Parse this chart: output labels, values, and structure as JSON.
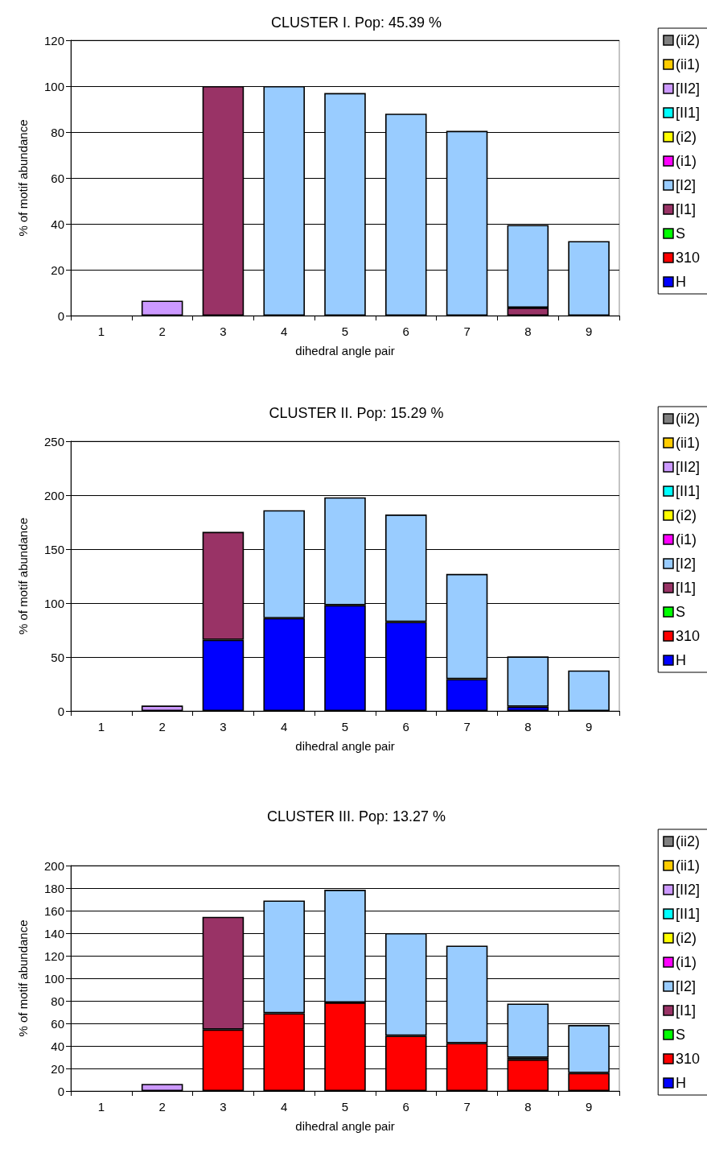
{
  "chart_data": [
    {
      "type": "bar",
      "stacked": true,
      "title": "CLUSTER I. Pop: 45.39 %",
      "xlabel": "dihedral angle pair",
      "ylabel": "% of motif abundance",
      "categories": [
        "1",
        "2",
        "3",
        "4",
        "5",
        "6",
        "7",
        "8",
        "9"
      ],
      "ylim": [
        0,
        120
      ],
      "yticks": [
        0,
        20,
        40,
        60,
        80,
        100,
        120
      ],
      "grid": "y",
      "legend": "right",
      "series": [
        {
          "name": "H",
          "color": "#0000ff",
          "values": [
            null,
            null,
            null,
            null,
            null,
            null,
            null,
            null,
            null
          ]
        },
        {
          "name": "310",
          "color": "#ff0000",
          "values": [
            null,
            null,
            null,
            null,
            null,
            null,
            null,
            null,
            null
          ]
        },
        {
          "name": "S",
          "color": "#00ff00",
          "values": [
            null,
            null,
            null,
            null,
            null,
            null,
            null,
            null,
            null
          ]
        },
        {
          "name": "[I1]",
          "color": "#993366",
          "values": [
            null,
            null,
            100,
            null,
            null,
            null,
            null,
            3.5,
            null
          ]
        },
        {
          "name": "[I2]",
          "color": "#99ccff",
          "values": [
            null,
            null,
            null,
            100,
            97,
            88,
            80.5,
            36,
            32.5
          ]
        },
        {
          "name": "(i1)",
          "color": "#ff00ff",
          "values": [
            null,
            null,
            null,
            null,
            null,
            null,
            null,
            null,
            null
          ]
        },
        {
          "name": "(i2)",
          "color": "#ffff00",
          "values": [
            null,
            null,
            null,
            null,
            null,
            null,
            null,
            null,
            null
          ]
        },
        {
          "name": "[II1]",
          "color": "#00ffff",
          "values": [
            null,
            null,
            null,
            null,
            null,
            null,
            null,
            null,
            null
          ]
        },
        {
          "name": "[II2]",
          "color": "#cc99ff",
          "values": [
            null,
            6.5,
            null,
            null,
            null,
            null,
            null,
            null,
            null
          ]
        },
        {
          "name": "(ii1)",
          "color": "#ffcc00",
          "values": [
            null,
            null,
            null,
            null,
            null,
            null,
            null,
            null,
            null
          ]
        },
        {
          "name": "(ii2)",
          "color": "#808080",
          "values": [
            null,
            null,
            null,
            null,
            null,
            null,
            null,
            null,
            null
          ]
        }
      ]
    },
    {
      "type": "bar",
      "stacked": true,
      "title": "CLUSTER II. Pop: 15.29 %",
      "xlabel": "dihedral angle pair",
      "ylabel": "% of motif abundance",
      "categories": [
        "1",
        "2",
        "3",
        "4",
        "5",
        "6",
        "7",
        "8",
        "9"
      ],
      "ylim": [
        0,
        250
      ],
      "yticks": [
        0,
        50,
        100,
        150,
        200,
        250
      ],
      "grid": "y",
      "legend": "right",
      "series": [
        {
          "name": "H",
          "color": "#0000ff",
          "values": [
            null,
            null,
            66,
            86,
            98,
            82.5,
            29.5,
            4,
            null
          ]
        },
        {
          "name": "310",
          "color": "#ff0000",
          "values": [
            null,
            null,
            null,
            null,
            null,
            null,
            null,
            null,
            null
          ]
        },
        {
          "name": "S",
          "color": "#00ff00",
          "values": [
            null,
            null,
            null,
            null,
            null,
            null,
            null,
            null,
            null
          ]
        },
        {
          "name": "[I1]",
          "color": "#993366",
          "values": [
            null,
            null,
            100,
            null,
            null,
            null,
            null,
            null,
            null
          ]
        },
        {
          "name": "[I2]",
          "color": "#99ccff",
          "values": [
            null,
            null,
            null,
            100,
            100,
            99.5,
            97.5,
            46.5,
            37.5
          ]
        },
        {
          "name": "(i1)",
          "color": "#ff00ff",
          "values": [
            null,
            null,
            null,
            null,
            null,
            null,
            null,
            null,
            null
          ]
        },
        {
          "name": "(i2)",
          "color": "#ffff00",
          "values": [
            null,
            null,
            null,
            null,
            null,
            null,
            null,
            null,
            null
          ]
        },
        {
          "name": "[II1]",
          "color": "#00ffff",
          "values": [
            null,
            null,
            null,
            null,
            null,
            null,
            null,
            null,
            null
          ]
        },
        {
          "name": "[II2]",
          "color": "#cc99ff",
          "values": [
            null,
            5,
            null,
            null,
            null,
            null,
            null,
            null,
            null
          ]
        },
        {
          "name": "(ii1)",
          "color": "#ffcc00",
          "values": [
            null,
            null,
            null,
            null,
            null,
            null,
            null,
            null,
            null
          ]
        },
        {
          "name": "(ii2)",
          "color": "#808080",
          "values": [
            null,
            null,
            null,
            null,
            null,
            null,
            null,
            null,
            null
          ]
        }
      ]
    },
    {
      "type": "bar",
      "stacked": true,
      "title": "CLUSTER III. Pop: 13.27 %",
      "xlabel": "dihedral angle pair",
      "ylabel": "% of motif abundance",
      "categories": [
        "1",
        "2",
        "3",
        "4",
        "5",
        "6",
        "7",
        "8",
        "9"
      ],
      "ylim": [
        0,
        200
      ],
      "yticks": [
        0,
        20,
        40,
        60,
        80,
        100,
        120,
        140,
        160,
        180,
        200
      ],
      "grid": "y",
      "legend": "right",
      "series": [
        {
          "name": "H",
          "color": "#0000ff",
          "values": [
            null,
            null,
            null,
            null,
            null,
            null,
            null,
            null,
            null
          ]
        },
        {
          "name": "310",
          "color": "#ff0000",
          "values": [
            null,
            null,
            54.5,
            69,
            78.5,
            49,
            42.5,
            28,
            16
          ]
        },
        {
          "name": "S",
          "color": "#00ff00",
          "values": [
            null,
            null,
            null,
            null,
            null,
            null,
            null,
            null,
            null
          ]
        },
        {
          "name": "[I1]",
          "color": "#993366",
          "values": [
            null,
            null,
            100,
            null,
            null,
            null,
            null,
            1.5,
            null
          ]
        },
        {
          "name": "[I2]",
          "color": "#99ccff",
          "values": [
            null,
            null,
            null,
            100,
            100,
            91,
            86.5,
            48,
            42.5
          ]
        },
        {
          "name": "(i1)",
          "color": "#ff00ff",
          "values": [
            null,
            null,
            null,
            null,
            null,
            null,
            null,
            null,
            null
          ]
        },
        {
          "name": "(i2)",
          "color": "#ffff00",
          "values": [
            null,
            null,
            null,
            null,
            null,
            null,
            null,
            null,
            null
          ]
        },
        {
          "name": "[II1]",
          "color": "#00ffff",
          "values": [
            null,
            null,
            null,
            null,
            null,
            null,
            null,
            null,
            null
          ]
        },
        {
          "name": "[II2]",
          "color": "#cc99ff",
          "values": [
            null,
            6.3,
            null,
            null,
            null,
            null,
            null,
            null,
            null
          ]
        },
        {
          "name": "(ii1)",
          "color": "#ffcc00",
          "values": [
            null,
            null,
            null,
            null,
            null,
            null,
            null,
            null,
            null
          ]
        },
        {
          "name": "(ii2)",
          "color": "#808080",
          "values": [
            null,
            null,
            null,
            null,
            null,
            null,
            null,
            null,
            null
          ]
        }
      ]
    }
  ]
}
